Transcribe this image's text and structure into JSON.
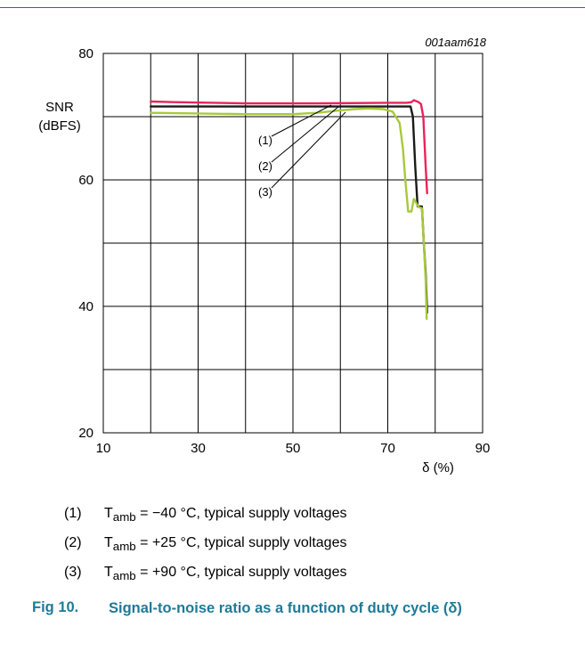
{
  "chart_data": {
    "type": "line",
    "code": "001aam618",
    "ylabel": "SNR",
    "ylabel_unit": "(dBFS)",
    "xlabel": "δ (%)",
    "xlim": [
      10,
      90
    ],
    "ylim": [
      20,
      80
    ],
    "x_ticks": [
      10,
      30,
      50,
      70,
      90
    ],
    "y_ticks": [
      20,
      40,
      60,
      80
    ],
    "grid": true,
    "series": [
      {
        "name": "(1)",
        "color": "#e8245c",
        "x": [
          20,
          25,
          40,
          55,
          70,
          74,
          75,
          75.5,
          76.5,
          77,
          77.5,
          78,
          78.3
        ],
        "y": [
          72.4,
          72.3,
          72.1,
          72.1,
          72.2,
          72.2,
          72.3,
          72.6,
          72.3,
          72.0,
          70.0,
          62.0,
          57.9
        ]
      },
      {
        "name": "(2)",
        "color": "#1a1a1a",
        "x": [
          20,
          30,
          50,
          70,
          74,
          74.8,
          75.3,
          75.8,
          76.3,
          77.2,
          77.6,
          78,
          78.3
        ],
        "y": [
          71.6,
          71.6,
          71.6,
          71.6,
          71.6,
          71.6,
          70.0,
          62.0,
          55.8,
          55.8,
          50.0,
          45.0,
          39.0
        ]
      },
      {
        "name": "(3)",
        "color": "#a8c93a",
        "x": [
          20,
          30,
          40,
          50,
          55,
          60,
          63,
          66,
          69,
          71,
          72.5,
          73.2,
          73.7,
          74.3,
          75,
          75.5,
          76.5,
          77.2,
          77.6,
          78,
          78.2
        ],
        "y": [
          70.6,
          70.5,
          70.4,
          70.4,
          70.6,
          71.0,
          71.2,
          71.3,
          71.2,
          70.8,
          69.0,
          65.0,
          60.0,
          55.0,
          55.0,
          57.0,
          55.7,
          55.5,
          50.0,
          44.0,
          38.0
        ]
      }
    ],
    "annotation_labels": [
      "(1)",
      "(2)",
      "(3)"
    ]
  },
  "notes": [
    {
      "num": "(1)",
      "sub": "amb",
      "value": " = −40 °C, typical supply voltages"
    },
    {
      "num": "(2)",
      "sub": "amb",
      "value": " = +25 °C, typical supply voltages"
    },
    {
      "num": "(3)",
      "sub": "amb",
      "value": " = +90 °C, typical supply voltages"
    }
  ],
  "caption": {
    "fig_num": "Fig 10.",
    "title": "Signal-to-noise ratio as a function of duty cycle (δ)"
  }
}
